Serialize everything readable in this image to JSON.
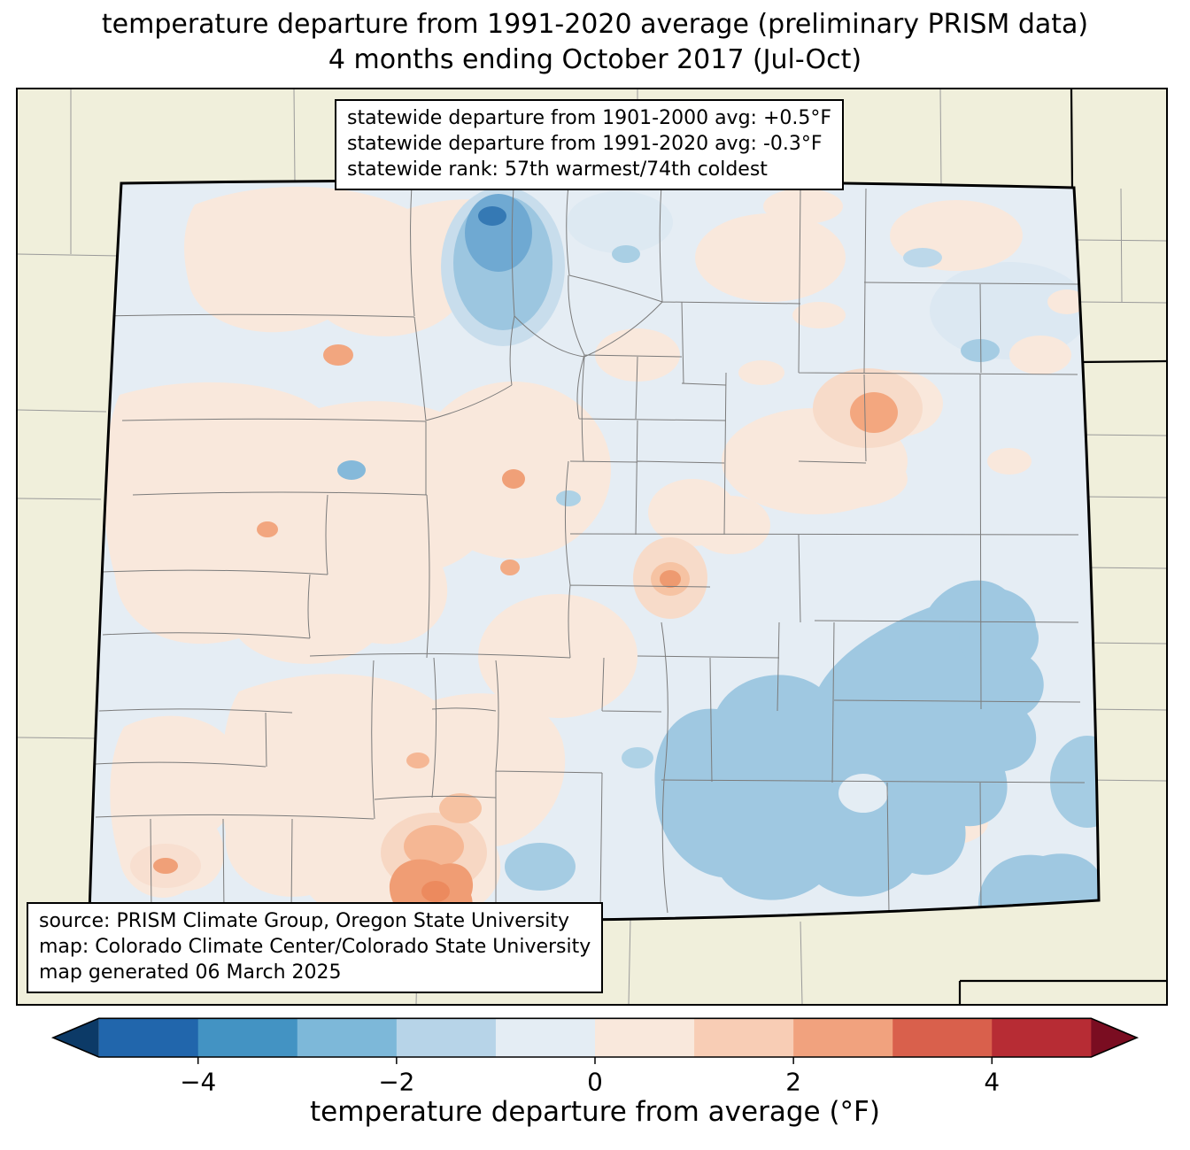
{
  "title": {
    "line1": "temperature departure from 1991-2020 average (preliminary PRISM data)",
    "line2": "4 months ending October 2017 (Jul-Oct)"
  },
  "stats_box": {
    "line1": "statewide departure from 1901-2000 avg: +0.5°F",
    "line2": "statewide departure from 1991-2020 avg: -0.3°F",
    "line3": "statewide rank: 57th warmest/74th coldest"
  },
  "source_box": {
    "line1": "source: PRISM Climate Group, Oregon State University",
    "line2": "map: Colorado Climate Center/Colorado State University",
    "line3": "map generated 06 March 2025"
  },
  "colorbar": {
    "label": "temperature departure from average (°F)",
    "range_min": -5,
    "range_max": 5,
    "ticks": [
      {
        "value": -4,
        "label": "−4"
      },
      {
        "value": -2,
        "label": "−2"
      },
      {
        "value": 0,
        "label": "0"
      },
      {
        "value": 2,
        "label": "2"
      },
      {
        "value": 4,
        "label": "4"
      }
    ],
    "segment_colors": [
      "#2166ac",
      "#4393c3",
      "#7db8d9",
      "#b7d4e8",
      "#e4edf4",
      "#f9e8dc",
      "#f8cdb5",
      "#f1a27e",
      "#d9604c",
      "#b72c34"
    ],
    "arrow_left_color": "#0c3a67",
    "arrow_right_color": "#7a0d21"
  },
  "map_colors": {
    "outside_state": "#f0efdb",
    "state_base": "#e5edf4",
    "warm_light": "#f9e8dc",
    "cool_medium": "#9fc8e1",
    "warm_medium": "#f1a27e"
  }
}
